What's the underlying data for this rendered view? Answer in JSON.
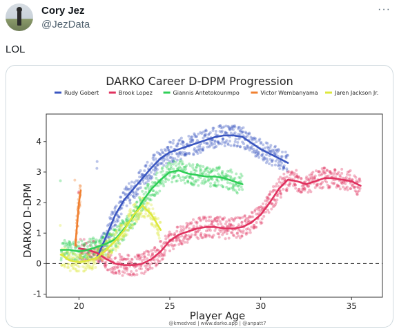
{
  "tweet": {
    "author_name": "Cory Jez",
    "author_handle": "@JezData",
    "more_glyph": "···",
    "text": "LOL"
  },
  "chart_data": {
    "type": "scatter",
    "title": "DARKO Career D-DPM Progression",
    "xlabel": "Player Age",
    "ylabel": "DARKO D-DPM",
    "xlim": [
      18.2,
      36.7
    ],
    "ylim": [
      -1.1,
      4.9
    ],
    "x_ticks": [
      20,
      25,
      30,
      35
    ],
    "y_ticks": [
      -1,
      0,
      1,
      2,
      3,
      4
    ],
    "reference_line": {
      "y": 0,
      "style": "dashed"
    },
    "grid": false,
    "legend_position": "top",
    "credit": "@kmedved | www.darko.app | @anpatt7",
    "series": [
      {
        "name": "Rudy Gobert",
        "color": "#3a56c0",
        "trend": [
          [
            21,
            0.2
          ],
          [
            21.5,
            0.9
          ],
          [
            22,
            1.6
          ],
          [
            22.5,
            2.1
          ],
          [
            23,
            2.45
          ],
          [
            23.5,
            2.8
          ],
          [
            24,
            3.15
          ],
          [
            24.5,
            3.45
          ],
          [
            25,
            3.65
          ],
          [
            25.5,
            3.75
          ],
          [
            26,
            3.85
          ],
          [
            26.5,
            3.95
          ],
          [
            27,
            4.05
          ],
          [
            27.5,
            4.15
          ],
          [
            28,
            4.2
          ],
          [
            28.5,
            4.2
          ],
          [
            29,
            4.15
          ],
          [
            29.5,
            3.95
          ],
          [
            30,
            3.75
          ],
          [
            30.5,
            3.6
          ],
          [
            31,
            3.45
          ],
          [
            31.5,
            3.3
          ]
        ]
      },
      {
        "name": "Brook Lopez",
        "color": "#e0325f",
        "trend": [
          [
            20,
            0.5
          ],
          [
            20.5,
            0.45
          ],
          [
            21,
            0.35
          ],
          [
            21.5,
            0.15
          ],
          [
            22,
            0.0
          ],
          [
            22.5,
            -0.05
          ],
          [
            23,
            -0.05
          ],
          [
            23.5,
            0.0
          ],
          [
            24,
            0.15
          ],
          [
            24.5,
            0.4
          ],
          [
            25,
            0.75
          ],
          [
            25.5,
            0.95
          ],
          [
            26,
            1.05
          ],
          [
            26.5,
            1.15
          ],
          [
            27,
            1.2
          ],
          [
            27.5,
            1.2
          ],
          [
            28,
            1.15
          ],
          [
            28.5,
            1.15
          ],
          [
            29,
            1.2
          ],
          [
            29.5,
            1.35
          ],
          [
            30,
            1.6
          ],
          [
            30.5,
            2.0
          ],
          [
            31,
            2.45
          ],
          [
            31.5,
            2.75
          ],
          [
            32,
            2.7
          ],
          [
            32.5,
            2.6
          ],
          [
            33,
            2.7
          ],
          [
            33.5,
            2.8
          ],
          [
            34,
            2.8
          ],
          [
            34.5,
            2.75
          ],
          [
            35,
            2.7
          ],
          [
            35.5,
            2.55
          ]
        ]
      },
      {
        "name": "Giannis Antetokounmpo",
        "color": "#2fcf57",
        "trend": [
          [
            19,
            0.45
          ],
          [
            19.5,
            0.45
          ],
          [
            20,
            0.4
          ],
          [
            20.5,
            0.45
          ],
          [
            21,
            0.55
          ],
          [
            21.5,
            0.65
          ],
          [
            22,
            0.8
          ],
          [
            22.5,
            1.15
          ],
          [
            23,
            1.55
          ],
          [
            23.5,
            2.05
          ],
          [
            24,
            2.45
          ],
          [
            24.5,
            2.75
          ],
          [
            25,
            3.0
          ],
          [
            25.5,
            3.05
          ],
          [
            26,
            2.95
          ],
          [
            26.5,
            2.9
          ],
          [
            27,
            2.85
          ],
          [
            27.5,
            2.85
          ],
          [
            28,
            2.8
          ],
          [
            28.5,
            2.7
          ],
          [
            29,
            2.6
          ]
        ]
      },
      {
        "name": "Victor Wembanyama",
        "color": "#f08030",
        "trend": [
          [
            19.8,
            0.6
          ],
          [
            19.9,
            1.3
          ],
          [
            20.0,
            2.0
          ],
          [
            20.1,
            2.4
          ]
        ]
      },
      {
        "name": "Jaren Jackson Jr.",
        "color": "#dde83c",
        "trend": [
          [
            19,
            0.3
          ],
          [
            19.5,
            0.1
          ],
          [
            20,
            0.05
          ],
          [
            20.5,
            0.1
          ],
          [
            21,
            0.2
          ],
          [
            21.5,
            0.45
          ],
          [
            22,
            0.75
          ],
          [
            22.5,
            1.1
          ],
          [
            23,
            1.6
          ],
          [
            23.5,
            1.9
          ],
          [
            24,
            1.6
          ],
          [
            24.5,
            1.1
          ]
        ]
      }
    ]
  }
}
